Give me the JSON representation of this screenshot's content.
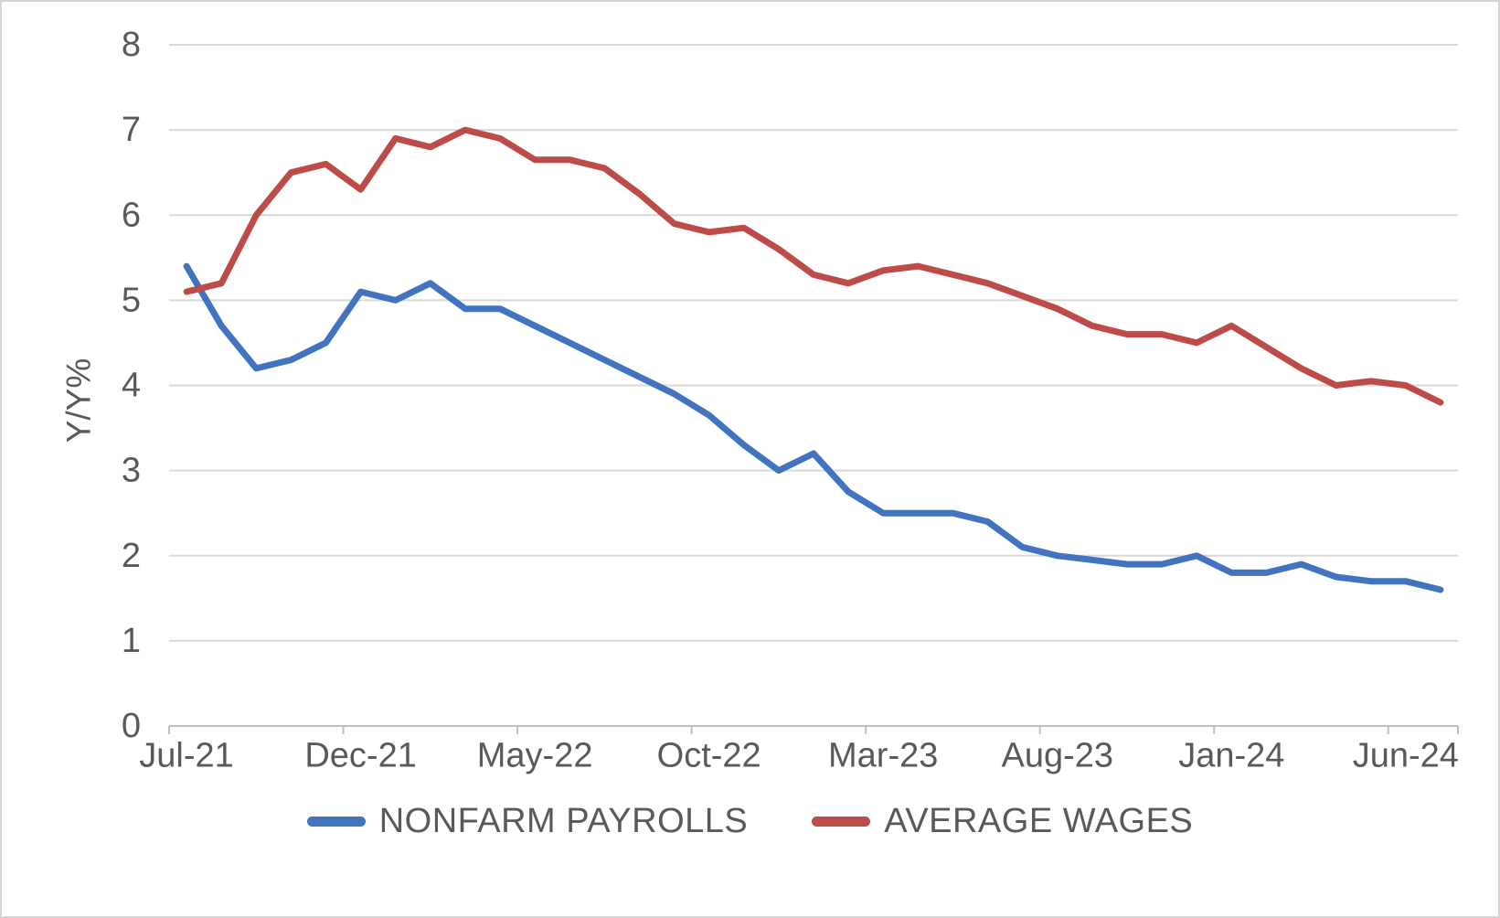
{
  "chart_data": {
    "type": "line",
    "title": "",
    "xlabel": "",
    "ylabel": "Y/Y%",
    "ylim": [
      0,
      8
    ],
    "y_ticks": [
      0,
      1,
      2,
      3,
      4,
      5,
      6,
      7,
      8
    ],
    "grid": true,
    "legend_position": "bottom",
    "x": [
      "Jul-21",
      "Aug-21",
      "Sep-21",
      "Oct-21",
      "Nov-21",
      "Dec-21",
      "Jan-22",
      "Feb-22",
      "Mar-22",
      "Apr-22",
      "May-22",
      "Jun-22",
      "Jul-22",
      "Aug-22",
      "Sep-22",
      "Oct-22",
      "Nov-22",
      "Dec-22",
      "Jan-23",
      "Feb-23",
      "Mar-23",
      "Apr-23",
      "May-23",
      "Jun-23",
      "Jul-23",
      "Aug-23",
      "Sep-23",
      "Oct-23",
      "Nov-23",
      "Dec-23",
      "Jan-24",
      "Feb-24",
      "Mar-24",
      "Apr-24",
      "May-24",
      "Jun-24",
      "Jul-24"
    ],
    "x_tick_indices": [
      0,
      5,
      10,
      15,
      20,
      25,
      30,
      35
    ],
    "series": [
      {
        "name": "NONFARM PAYROLLS",
        "color": "#4173be",
        "values": [
          5.4,
          4.7,
          4.2,
          4.3,
          4.5,
          5.1,
          5.0,
          5.2,
          4.9,
          4.9,
          4.7,
          4.5,
          4.3,
          4.1,
          3.9,
          3.65,
          3.3,
          3.0,
          3.2,
          2.75,
          2.5,
          2.5,
          2.5,
          2.4,
          2.1,
          2.0,
          1.95,
          1.9,
          1.9,
          2.0,
          1.8,
          1.8,
          1.9,
          1.75,
          1.7,
          1.7,
          1.6
        ]
      },
      {
        "name": "AVERAGE WAGES",
        "color": "#bd4b47",
        "values": [
          5.1,
          5.2,
          6.0,
          6.5,
          6.6,
          6.3,
          6.9,
          6.8,
          7.0,
          6.9,
          6.65,
          6.65,
          6.55,
          6.25,
          5.9,
          5.8,
          5.85,
          5.6,
          5.3,
          5.2,
          5.35,
          5.4,
          5.3,
          5.2,
          5.05,
          4.9,
          4.7,
          4.6,
          4.6,
          4.5,
          4.7,
          4.45,
          4.2,
          4.0,
          4.05,
          4.0,
          3.8
        ]
      }
    ],
    "colors": {
      "gridline": "#d9d9d9",
      "axis_line": "#bfbfbf",
      "tick_text": "#595959"
    }
  }
}
